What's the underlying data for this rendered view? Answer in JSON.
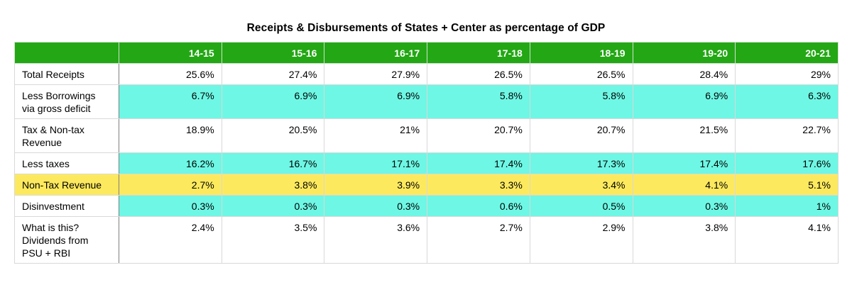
{
  "title": "Receipts & Disbursements of States + Center as percentage of GDP",
  "table": {
    "columns": [
      "14-15",
      "15-16",
      "16-17",
      "17-18",
      "18-19",
      "19-20",
      "20-21"
    ],
    "rows": [
      {
        "label": "Total Receipts",
        "highlight": "none",
        "values": [
          "25.6%",
          "27.4%",
          "27.9%",
          "26.5%",
          "26.5%",
          "28.4%",
          "29%"
        ]
      },
      {
        "label": "Less Borrowings\nvia gross deficit",
        "highlight": "cyan",
        "values": [
          "6.7%",
          "6.9%",
          "6.9%",
          "5.8%",
          "5.8%",
          "6.9%",
          "6.3%"
        ]
      },
      {
        "label": "Tax & Non-tax\nRevenue",
        "highlight": "none",
        "values": [
          "18.9%",
          "20.5%",
          "21%",
          "20.7%",
          "20.7%",
          "21.5%",
          "22.7%"
        ]
      },
      {
        "label": "Less taxes",
        "highlight": "cyan",
        "values": [
          "16.2%",
          "16.7%",
          "17.1%",
          "17.4%",
          "17.3%",
          "17.4%",
          "17.6%"
        ]
      },
      {
        "label": "Non-Tax Revenue",
        "highlight": "yellow-full",
        "values": [
          "2.7%",
          "3.8%",
          "3.9%",
          "3.3%",
          "3.4%",
          "4.1%",
          "5.1%"
        ]
      },
      {
        "label": "Disinvestment",
        "highlight": "cyan",
        "values": [
          "0.3%",
          "0.3%",
          "0.3%",
          "0.6%",
          "0.5%",
          "0.3%",
          "1%"
        ]
      },
      {
        "label": "What is this?\nDividends from\nPSU + RBI",
        "highlight": "none",
        "values": [
          "2.4%",
          "3.5%",
          "3.6%",
          "2.7%",
          "2.9%",
          "3.8%",
          "4.1%"
        ]
      }
    ]
  },
  "colors": {
    "header_bg": "#23a714",
    "header_text": "#ffffff",
    "cyan_highlight": "#6ef7e4",
    "yellow_highlight": "#fde95e",
    "grid_light": "#d9d9d9",
    "grid_dark": "#7f7f7f"
  },
  "chart_data": {
    "type": "table",
    "title": "Receipts & Disbursements of States + Center as percentage of GDP",
    "categories": [
      "14-15",
      "15-16",
      "16-17",
      "17-18",
      "18-19",
      "19-20",
      "20-21"
    ],
    "unit": "% of GDP",
    "series": [
      {
        "name": "Total Receipts",
        "values": [
          25.6,
          27.4,
          27.9,
          26.5,
          26.5,
          28.4,
          29
        ]
      },
      {
        "name": "Less Borrowings via gross deficit",
        "values": [
          6.7,
          6.9,
          6.9,
          5.8,
          5.8,
          6.9,
          6.3
        ]
      },
      {
        "name": "Tax & Non-tax Revenue",
        "values": [
          18.9,
          20.5,
          21,
          20.7,
          20.7,
          21.5,
          22.7
        ]
      },
      {
        "name": "Less taxes",
        "values": [
          16.2,
          16.7,
          17.1,
          17.4,
          17.3,
          17.4,
          17.6
        ]
      },
      {
        "name": "Non-Tax Revenue",
        "values": [
          2.7,
          3.8,
          3.9,
          3.3,
          3.4,
          4.1,
          5.1
        ]
      },
      {
        "name": "Disinvestment",
        "values": [
          0.3,
          0.3,
          0.3,
          0.6,
          0.5,
          0.3,
          1
        ]
      },
      {
        "name": "What is this? Dividends from PSU + RBI",
        "values": [
          2.4,
          3.5,
          3.6,
          2.7,
          2.9,
          3.8,
          4.1
        ]
      }
    ]
  }
}
